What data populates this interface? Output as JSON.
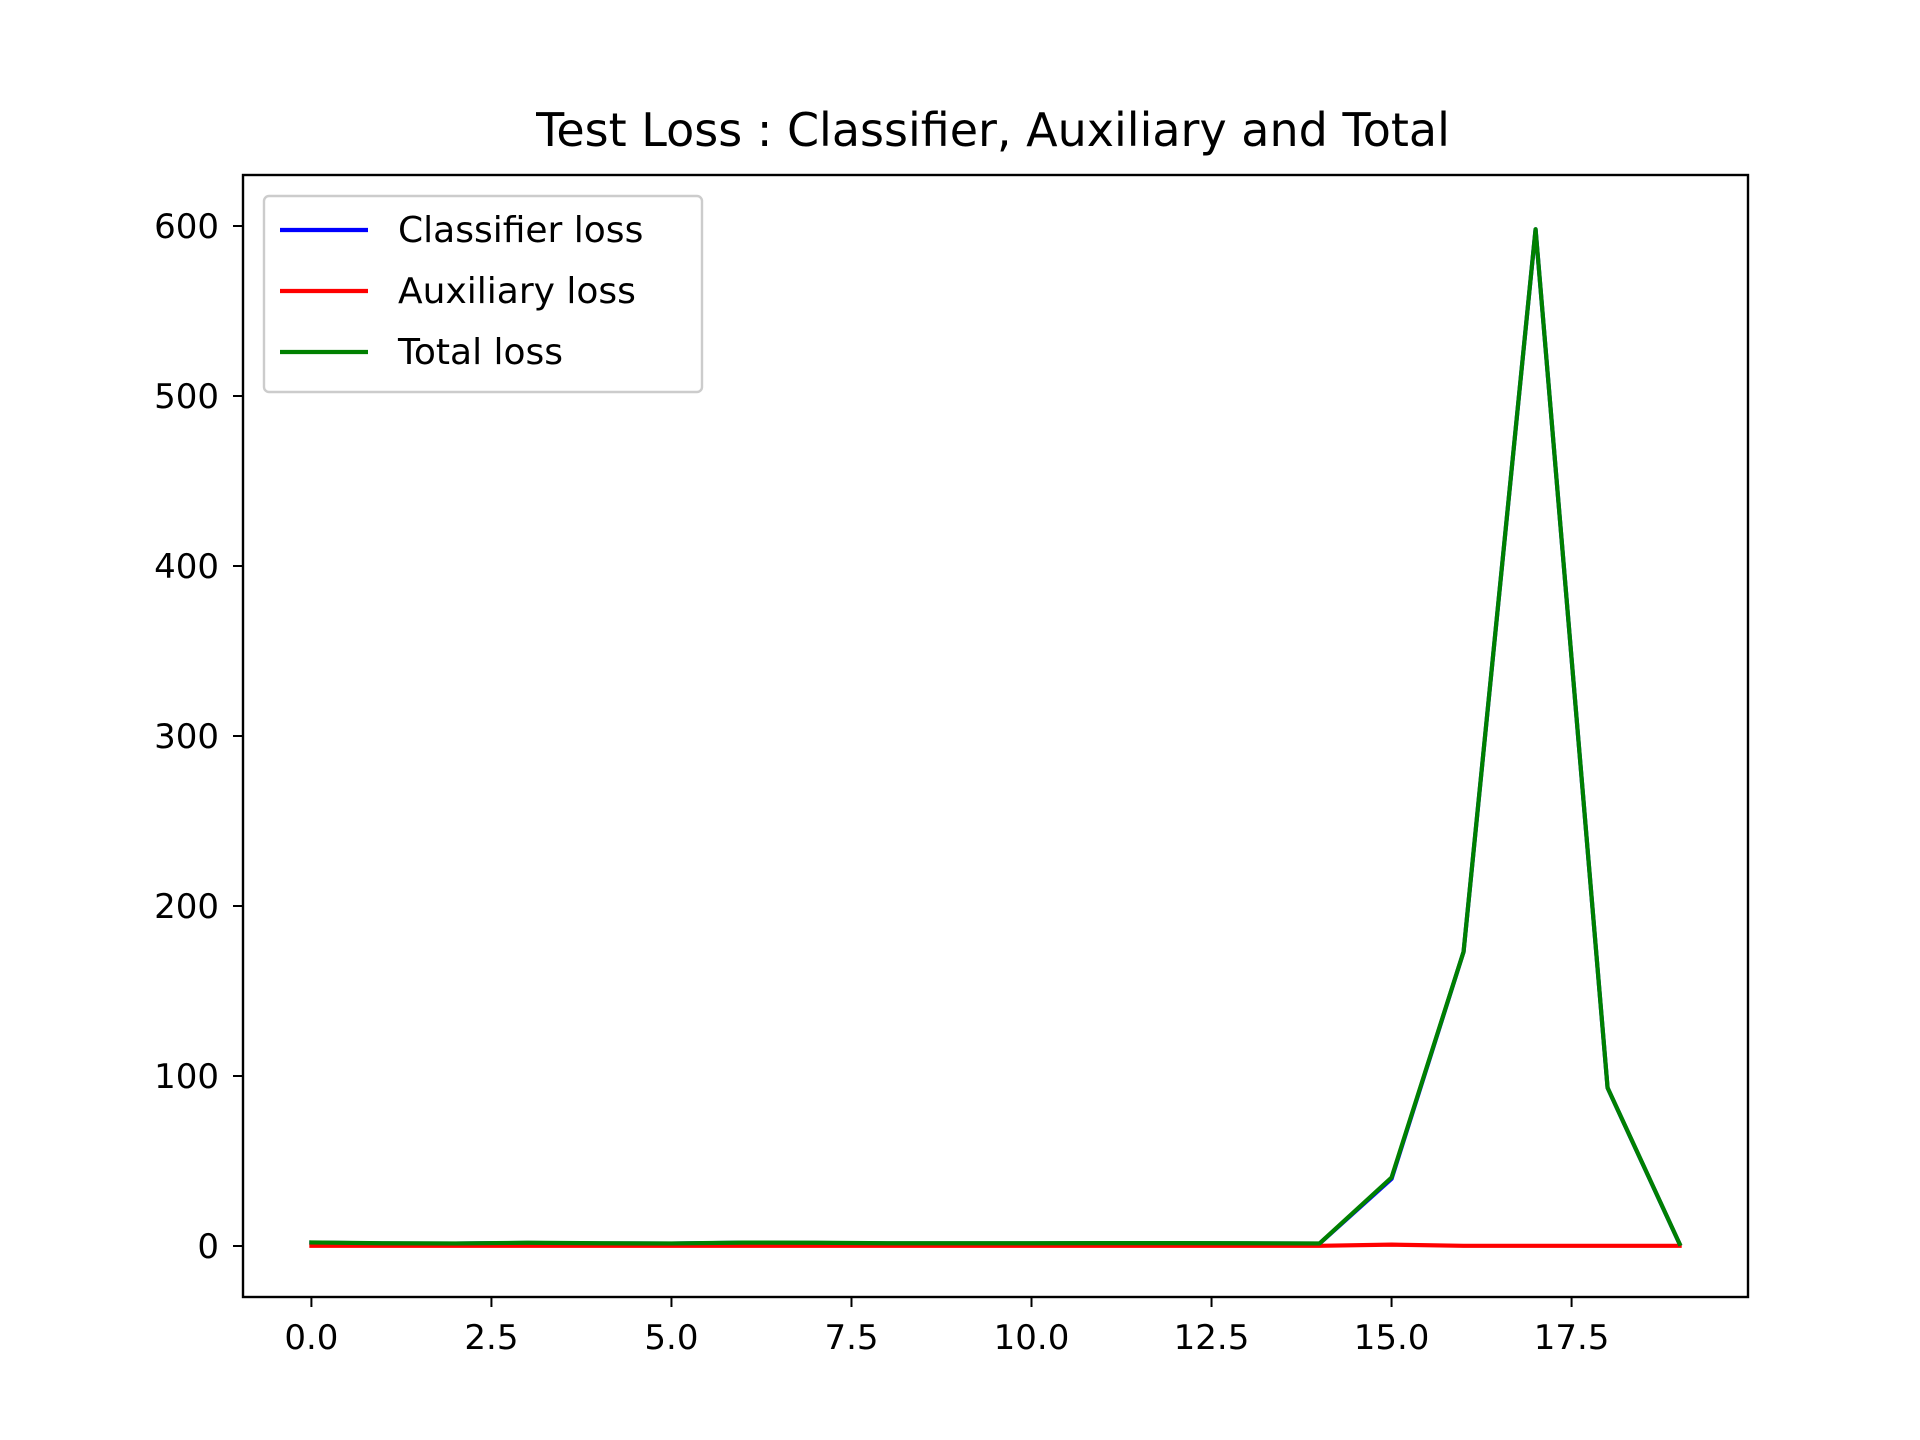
{
  "chart_data": {
    "type": "line",
    "title": "Test Loss : Classifier, Auxiliary and Total",
    "xlabel": "",
    "ylabel": "",
    "xlim": [
      -0.95,
      19.95
    ],
    "ylim": [
      -30,
      630
    ],
    "xticks": [
      0.0,
      2.5,
      5.0,
      7.5,
      10.0,
      12.5,
      15.0,
      17.5
    ],
    "xtick_labels": [
      "0.0",
      "2.5",
      "5.0",
      "7.5",
      "10.0",
      "12.5",
      "15.0",
      "17.5"
    ],
    "yticks": [
      0,
      100,
      200,
      300,
      400,
      500,
      600
    ],
    "ytick_labels": [
      "0",
      "100",
      "200",
      "300",
      "400",
      "500",
      "600"
    ],
    "grid": false,
    "legend_position": "upper-left",
    "x": [
      0,
      1,
      2,
      3,
      4,
      5,
      6,
      7,
      8,
      9,
      10,
      11,
      12,
      13,
      14,
      15,
      16,
      17,
      18,
      19
    ],
    "series": [
      {
        "name": "Classifier loss",
        "color": "#0000ff",
        "values": [
          2.0,
          1.5,
          1.4,
          1.8,
          1.5,
          1.4,
          1.9,
          1.8,
          1.5,
          1.5,
          1.5,
          1.6,
          1.6,
          1.5,
          1.4,
          39.5,
          173,
          598,
          93,
          1.2
        ]
      },
      {
        "name": "Auxiliary loss",
        "color": "#ff0000",
        "values": [
          0.1,
          0.1,
          0.1,
          0.1,
          0.1,
          0.1,
          0.1,
          0.1,
          0.1,
          0.1,
          0.1,
          0.1,
          0.1,
          0.1,
          0.1,
          0.8,
          0.1,
          0.1,
          0.1,
          0.1
        ]
      },
      {
        "name": "Total loss",
        "color": "#008000",
        "values": [
          2.1,
          1.6,
          1.5,
          1.9,
          1.6,
          1.5,
          2.0,
          1.9,
          1.6,
          1.6,
          1.6,
          1.7,
          1.7,
          1.6,
          1.5,
          40.3,
          173.1,
          598.1,
          93.1,
          1.3
        ]
      }
    ]
  }
}
